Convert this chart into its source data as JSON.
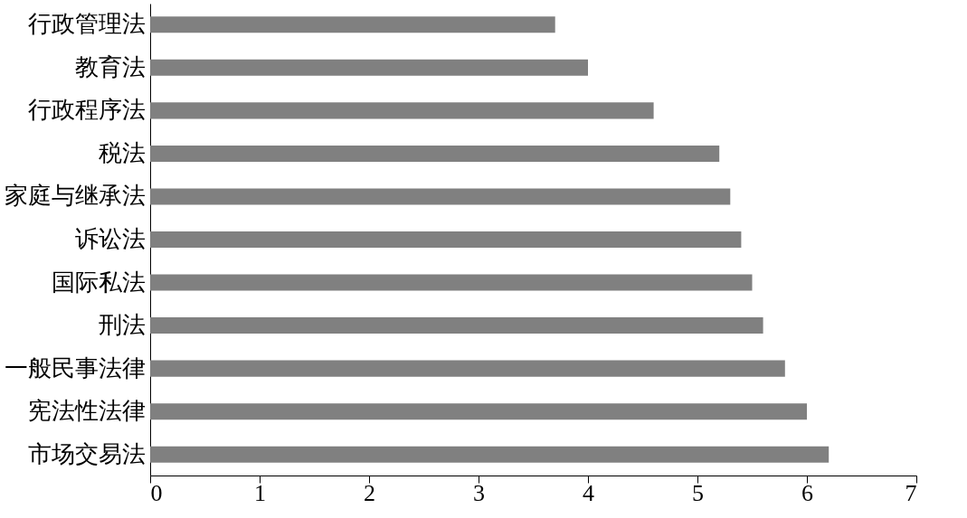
{
  "chart_data": {
    "type": "bar",
    "orientation": "horizontal",
    "categories": [
      "行政管理法",
      "教育法",
      "行政程序法",
      "税法",
      "家庭与继承法",
      "诉讼法",
      "国际私法",
      "刑法",
      "一般民事法律",
      "宪法性法律",
      "市场交易法"
    ],
    "values": [
      3.7,
      4.0,
      4.6,
      5.2,
      5.3,
      5.4,
      5.5,
      5.6,
      5.8,
      6.0,
      6.2
    ],
    "color": "#808080",
    "xlim": [
      0,
      7
    ],
    "xticks": [
      0,
      1,
      2,
      3,
      4,
      5,
      6,
      7
    ],
    "grid": false
  }
}
